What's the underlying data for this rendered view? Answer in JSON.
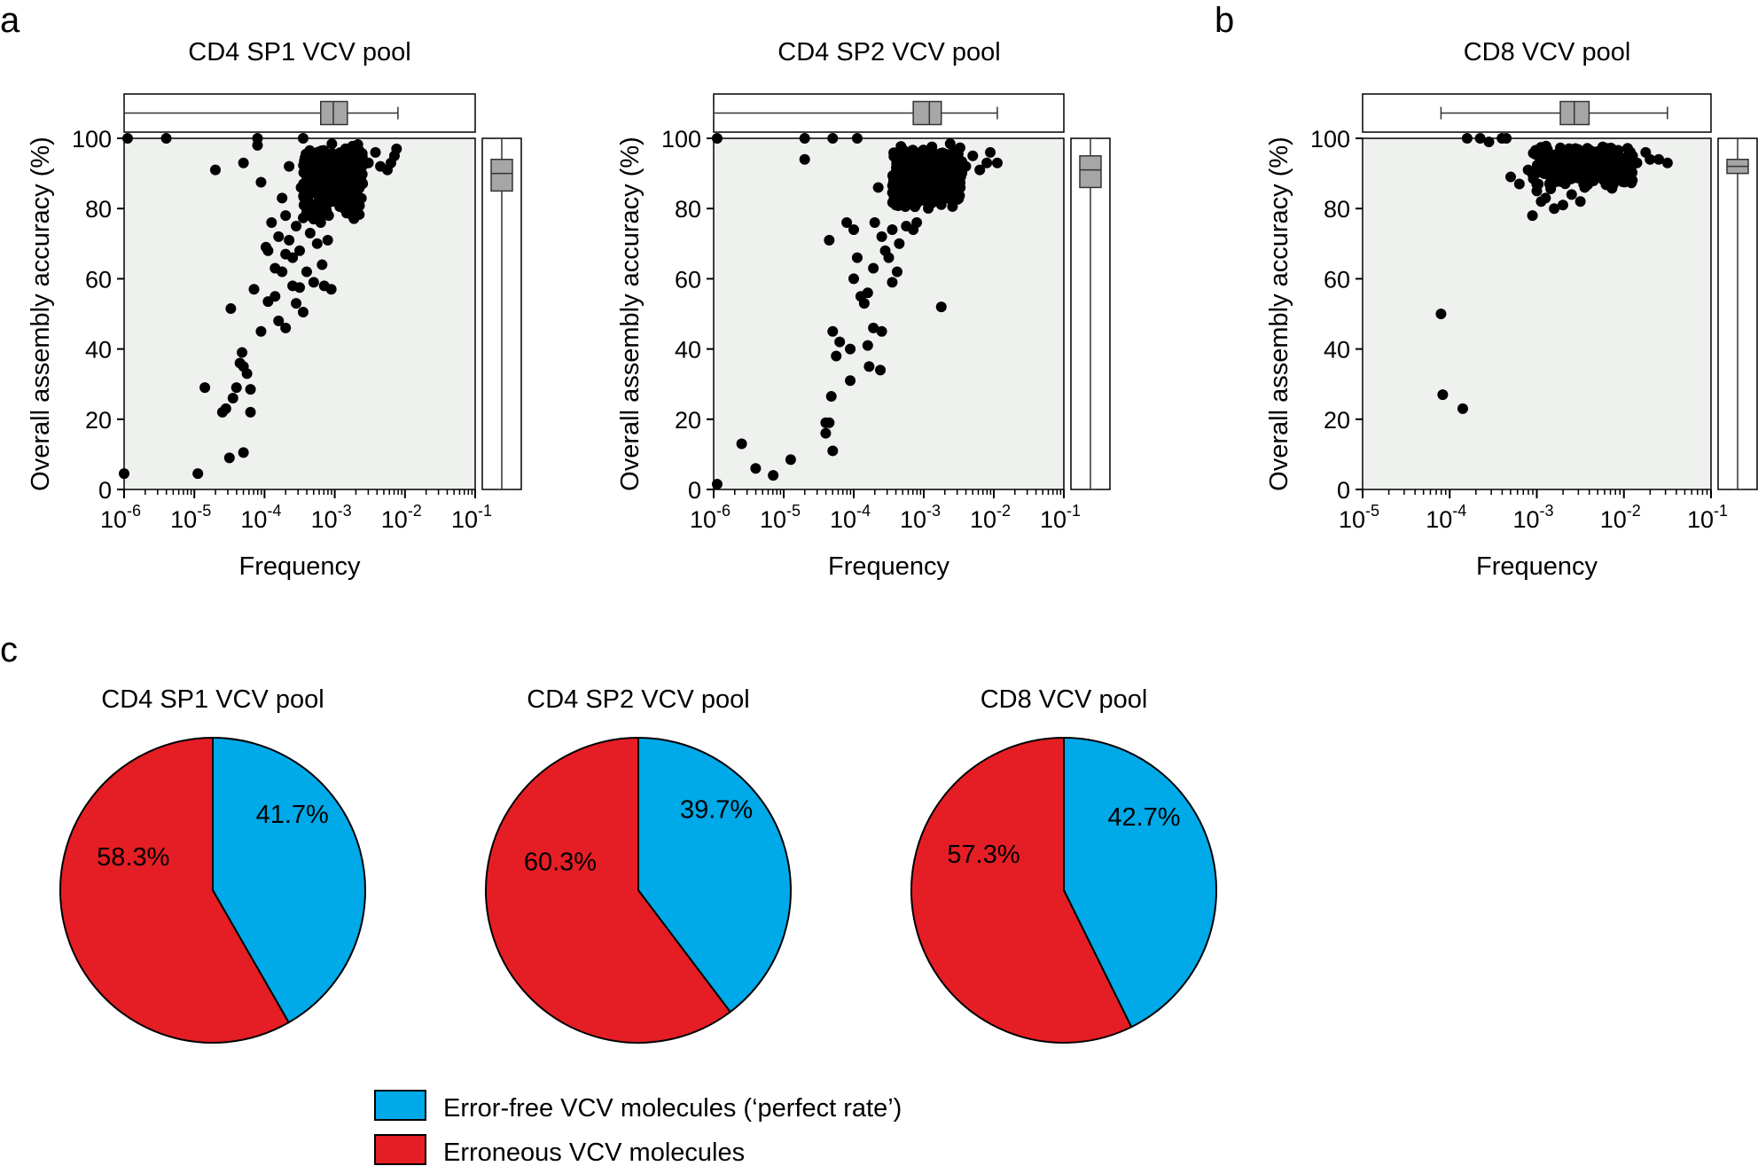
{
  "panel_labels": {
    "a": "a",
    "b": "b",
    "c": "c"
  },
  "colors": {
    "plot_bg": "#eff1ef",
    "point": "#000000",
    "box_fill": "#a6a6a6",
    "error_free": "#00a9e8",
    "erroneous": "#e51e25"
  },
  "scatter_common": {
    "xlabel": "Frequency",
    "ylabel": "Overall assembly accuracy (%)",
    "ylim": [
      0,
      100
    ],
    "yticks": [
      "0",
      "20",
      "40",
      "60",
      "80",
      "100"
    ],
    "x_base": "10"
  },
  "legend": {
    "error_free_label": "Error-free VCV molecules (‘perfect rate’)",
    "erroneous_label": "Erroneous VCV molecules"
  },
  "chart_data": [
    {
      "type": "scatter",
      "title": "CD4 SP1 VCV pool",
      "xlabel": "Frequency",
      "ylabel": "Overall assembly accuracy (%)",
      "xscale": "log",
      "xlim_exp": [
        -6,
        -1
      ],
      "xtick_exponents": [
        "-6",
        "-5",
        "-4",
        "-3",
        "-2",
        "-1"
      ],
      "ylim": [
        0,
        100
      ],
      "x_box": {
        "min_exp": -6,
        "q1_exp": -3.2,
        "median_exp": -3.02,
        "q3_exp": -2.82,
        "max_exp": -2.1
      },
      "y_box": {
        "min": 0,
        "q1": 85,
        "median": 90,
        "q3": 94,
        "max": 100
      },
      "points": [
        [
          -6.0,
          4.5
        ],
        [
          -5.95,
          100
        ],
        [
          -5.4,
          100
        ],
        [
          -4.95,
          4.5
        ],
        [
          -4.85,
          29
        ],
        [
          -4.7,
          91
        ],
        [
          -4.6,
          22
        ],
        [
          -4.55,
          23
        ],
        [
          -4.5,
          9
        ],
        [
          -4.45,
          26
        ],
        [
          -4.48,
          51.5
        ],
        [
          -4.4,
          29
        ],
        [
          -4.35,
          36
        ],
        [
          -4.3,
          35
        ],
        [
          -4.32,
          39
        ],
        [
          -4.3,
          10.5
        ],
        [
          -4.25,
          33
        ],
        [
          -4.2,
          28.5
        ],
        [
          -4.2,
          22
        ],
        [
          -4.15,
          57
        ],
        [
          -4.3,
          93
        ],
        [
          -4.1,
          100
        ],
        [
          -4.1,
          98
        ],
        [
          -4.05,
          87.5
        ],
        [
          -4.05,
          45
        ],
        [
          -3.98,
          69
        ],
        [
          -3.95,
          53.5
        ],
        [
          -3.95,
          68
        ],
        [
          -3.9,
          76
        ],
        [
          -3.85,
          63
        ],
        [
          -3.85,
          55
        ],
        [
          -3.8,
          72
        ],
        [
          -3.8,
          48
        ],
        [
          -3.75,
          62
        ],
        [
          -3.75,
          83
        ],
        [
          -3.7,
          67
        ],
        [
          -3.7,
          46
        ],
        [
          -3.7,
          78
        ],
        [
          -3.65,
          71
        ],
        [
          -3.65,
          92
        ],
        [
          -3.6,
          66
        ],
        [
          -3.6,
          58
        ],
        [
          -3.55,
          75
        ],
        [
          -3.55,
          53
        ],
        [
          -3.5,
          57.5
        ],
        [
          -3.5,
          68
        ],
        [
          -3.48,
          86
        ],
        [
          -3.45,
          50.5
        ],
        [
          -3.45,
          100
        ],
        [
          -3.4,
          62
        ],
        [
          -3.4,
          79
        ],
        [
          -3.35,
          73
        ],
        [
          -3.3,
          77
        ],
        [
          -3.3,
          59
        ],
        [
          -3.25,
          81
        ],
        [
          -3.25,
          70
        ],
        [
          -3.2,
          76
        ],
        [
          -3.18,
          64
        ],
        [
          -3.15,
          58
        ],
        [
          -3.1,
          71
        ],
        [
          -3.05,
          57
        ],
        [
          -3.22,
          87
        ],
        [
          -3.12,
          85
        ],
        [
          -3.02,
          83
        ],
        [
          -2.92,
          86
        ],
        [
          -2.82,
          88
        ],
        [
          -2.72,
          91
        ],
        [
          -2.62,
          90
        ],
        [
          -2.52,
          93
        ],
        [
          -2.42,
          96
        ],
        [
          -2.35,
          92
        ],
        [
          -2.25,
          91
        ],
        [
          -2.2,
          93
        ],
        [
          -2.15,
          95
        ],
        [
          -2.12,
          97
        ]
      ],
      "dense_region": {
        "x_min_exp": -3.45,
        "x_max_exp": -2.6,
        "y_min": 76,
        "y_max": 99,
        "count": 320
      }
    },
    {
      "type": "scatter",
      "title": "CD4 SP2 VCV pool",
      "xlabel": "Frequency",
      "ylabel": "Overall assembly accuracy (%)",
      "xscale": "log",
      "xlim_exp": [
        -6,
        -1
      ],
      "xtick_exponents": [
        "-6",
        "-5",
        "-4",
        "-3",
        "-2",
        "-1"
      ],
      "ylim": [
        0,
        100
      ],
      "x_box": {
        "min_exp": -6,
        "q1_exp": -3.15,
        "median_exp": -2.92,
        "q3_exp": -2.75,
        "max_exp": -1.95
      },
      "y_box": {
        "min": 0,
        "q1": 86,
        "median": 91,
        "q3": 95,
        "max": 100
      },
      "points": [
        [
          -5.95,
          1.5
        ],
        [
          -5.95,
          100
        ],
        [
          -5.6,
          13
        ],
        [
          -5.4,
          6
        ],
        [
          -5.15,
          4
        ],
        [
          -4.9,
          8.5
        ],
        [
          -4.7,
          100
        ],
        [
          -4.7,
          94
        ],
        [
          -4.4,
          16
        ],
        [
          -4.4,
          19
        ],
        [
          -4.35,
          19
        ],
        [
          -4.32,
          26.5
        ],
        [
          -4.3,
          11
        ],
        [
          -4.3,
          45
        ],
        [
          -4.25,
          38
        ],
        [
          -4.2,
          42
        ],
        [
          -4.35,
          71
        ],
        [
          -4.3,
          100
        ],
        [
          -4.1,
          76
        ],
        [
          -4.05,
          31
        ],
        [
          -4.05,
          40
        ],
        [
          -4.0,
          60
        ],
        [
          -4.0,
          74
        ],
        [
          -3.95,
          66
        ],
        [
          -3.95,
          100
        ],
        [
          -3.9,
          55
        ],
        [
          -3.85,
          53
        ],
        [
          -3.8,
          56
        ],
        [
          -3.8,
          41
        ],
        [
          -3.78,
          35
        ],
        [
          -3.72,
          46
        ],
        [
          -3.72,
          63
        ],
        [
          -3.7,
          76
        ],
        [
          -3.65,
          86
        ],
        [
          -3.62,
          34
        ],
        [
          -3.6,
          45
        ],
        [
          -3.6,
          72
        ],
        [
          -3.55,
          68
        ],
        [
          -3.5,
          66
        ],
        [
          -3.45,
          59
        ],
        [
          -3.45,
          74
        ],
        [
          -3.4,
          81
        ],
        [
          -3.38,
          62
        ],
        [
          -3.35,
          70
        ],
        [
          -3.3,
          82
        ],
        [
          -3.25,
          75
        ],
        [
          -3.2,
          85
        ],
        [
          -3.15,
          74
        ],
        [
          -3.1,
          76
        ],
        [
          -3.05,
          88
        ],
        [
          -2.95,
          83
        ],
        [
          -2.85,
          86
        ],
        [
          -2.75,
          52
        ],
        [
          -2.7,
          89
        ],
        [
          -2.6,
          91
        ],
        [
          -2.5,
          94
        ],
        [
          -2.4,
          92
        ],
        [
          -2.3,
          95
        ],
        [
          -2.2,
          91
        ],
        [
          -2.1,
          93
        ],
        [
          -2.05,
          96
        ],
        [
          -1.95,
          93
        ]
      ],
      "dense_region": {
        "x_min_exp": -3.45,
        "x_max_exp": -2.45,
        "y_min": 79,
        "y_max": 99,
        "count": 320
      }
    },
    {
      "type": "scatter",
      "title": "CD8 VCV pool",
      "xlabel": "Frequency",
      "ylabel": "Overall assembly accuracy (%)",
      "xscale": "log",
      "xlim_exp": [
        -5,
        -1
      ],
      "xtick_exponents": [
        "-5",
        "-4",
        "-3",
        "-2",
        "-1"
      ],
      "ylim": [
        0,
        100
      ],
      "x_box": {
        "min_exp": -4.1,
        "q1_exp": -2.73,
        "median_exp": -2.57,
        "q3_exp": -2.4,
        "max_exp": -1.5
      },
      "y_box": {
        "min": 0,
        "q1": 90,
        "median": 92,
        "q3": 94,
        "max": 100
      },
      "points": [
        [
          -4.1,
          50
        ],
        [
          -4.08,
          27
        ],
        [
          -3.85,
          23
        ],
        [
          -3.8,
          100
        ],
        [
          -3.65,
          100
        ],
        [
          -3.55,
          99
        ],
        [
          -3.4,
          100
        ],
        [
          -3.35,
          100
        ],
        [
          -3.3,
          89
        ],
        [
          -3.2,
          87
        ],
        [
          -3.1,
          91
        ],
        [
          -3.05,
          78
        ],
        [
          -3.0,
          85
        ],
        [
          -2.95,
          82
        ],
        [
          -2.9,
          83
        ],
        [
          -2.8,
          80
        ],
        [
          -2.7,
          81
        ],
        [
          -2.6,
          84
        ],
        [
          -2.5,
          82
        ],
        [
          -2.45,
          86
        ],
        [
          -2.4,
          88
        ],
        [
          -2.3,
          90
        ],
        [
          -2.2,
          91
        ],
        [
          -2.1,
          93
        ],
        [
          -1.9,
          95
        ],
        [
          -1.85,
          93
        ],
        [
          -1.75,
          96
        ],
        [
          -1.7,
          94
        ],
        [
          -1.6,
          94
        ],
        [
          -1.5,
          93
        ]
      ],
      "dense_region": {
        "x_min_exp": -3.05,
        "x_max_exp": -1.9,
        "y_min": 85,
        "y_max": 98,
        "count": 260
      }
    },
    {
      "type": "pie",
      "title": "CD4 SP1 VCV pool",
      "slices": [
        {
          "label": "Error-free VCV molecules",
          "value": 41.7,
          "text": "41.7%",
          "color": "#00a9e8"
        },
        {
          "label": "Erroneous VCV molecules",
          "value": 58.3,
          "text": "58.3%",
          "color": "#e51e25"
        }
      ]
    },
    {
      "type": "pie",
      "title": "CD4 SP2 VCV pool",
      "slices": [
        {
          "label": "Error-free VCV molecules",
          "value": 39.7,
          "text": "39.7%",
          "color": "#00a9e8"
        },
        {
          "label": "Erroneous VCV molecules",
          "value": 60.3,
          "text": "60.3%",
          "color": "#e51e25"
        }
      ]
    },
    {
      "type": "pie",
      "title": "CD8 VCV pool",
      "slices": [
        {
          "label": "Error-free VCV molecules",
          "value": 42.7,
          "text": "42.7%",
          "color": "#00a9e8"
        },
        {
          "label": "Erroneous VCV molecules",
          "value": 57.3,
          "text": "57.3%",
          "color": "#e51e25"
        }
      ]
    }
  ]
}
